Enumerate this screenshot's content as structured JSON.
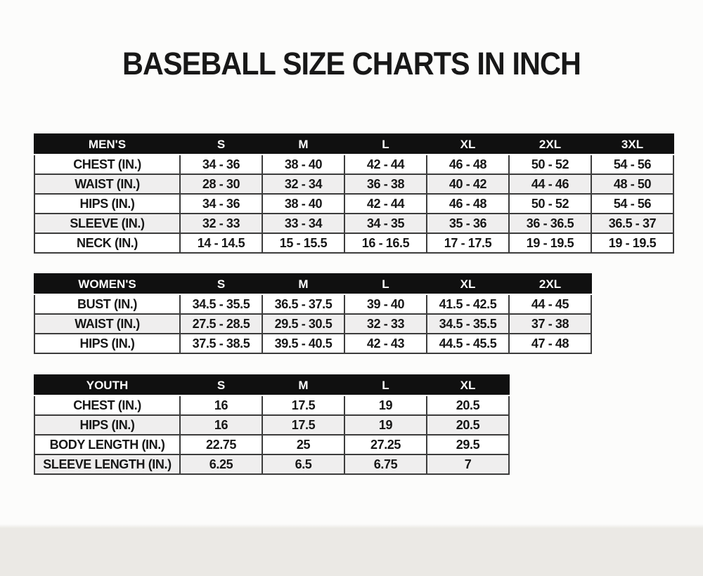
{
  "title": "BASEBALL SIZE CHARTS IN INCH",
  "chart_data": [
    {
      "type": "table",
      "name": "mens",
      "header": [
        "MEN'S",
        "S",
        "M",
        "L",
        "XL",
        "2XL",
        "3XL"
      ],
      "rows": [
        [
          "CHEST (IN.)",
          "34 - 36",
          "38 - 40",
          "42 - 44",
          "46 - 48",
          "50 - 52",
          "54 - 56"
        ],
        [
          "WAIST (IN.)",
          "28 - 30",
          "32 - 34",
          "36 - 38",
          "40 - 42",
          "44 - 46",
          "48 - 50"
        ],
        [
          "HIPS (IN.)",
          "34 - 36",
          "38 - 40",
          "42 - 44",
          "46 - 48",
          "50 - 52",
          "54 - 56"
        ],
        [
          "SLEEVE (IN.)",
          "32 - 33",
          "33 - 34",
          "34 - 35",
          "35 - 36",
          "36 - 36.5",
          "36.5 - 37"
        ],
        [
          "NECK (IN.)",
          "14 - 14.5",
          "15 - 15.5",
          "16 - 16.5",
          "17 - 17.5",
          "19 - 19.5",
          "19 - 19.5"
        ]
      ]
    },
    {
      "type": "table",
      "name": "womens",
      "header": [
        "WOMEN'S",
        "S",
        "M",
        "L",
        "XL",
        "2XL"
      ],
      "rows": [
        [
          "BUST (IN.)",
          "34.5 - 35.5",
          "36.5 - 37.5",
          "39 - 40",
          "41.5 - 42.5",
          "44 - 45"
        ],
        [
          "WAIST (IN.)",
          "27.5 - 28.5",
          "29.5 - 30.5",
          "32 - 33",
          "34.5 - 35.5",
          "37 - 38"
        ],
        [
          "HIPS (IN.)",
          "37.5 - 38.5",
          "39.5 - 40.5",
          "42 - 43",
          "44.5 - 45.5",
          "47 - 48"
        ]
      ]
    },
    {
      "type": "table",
      "name": "youth",
      "header": [
        "YOUTH",
        "S",
        "M",
        "L",
        "XL"
      ],
      "rows": [
        [
          "CHEST (IN.)",
          "16",
          "17.5",
          "19",
          "20.5"
        ],
        [
          "HIPS (IN.)",
          "16",
          "17.5",
          "19",
          "20.5"
        ],
        [
          "BODY LENGTH (IN.)",
          "22.75",
          "25",
          "27.25",
          "29.5"
        ],
        [
          "SLEEVE LENGTH (IN.)",
          "6.25",
          "6.5",
          "6.75",
          "7"
        ]
      ]
    }
  ],
  "colors": {
    "page_bg": "#fcfcfb",
    "header_bg": "#101010",
    "header_text": "#ffffff",
    "row_bg": "#ffffff",
    "row_alt_bg": "#efeeee",
    "border": "#3c3c3c",
    "text": "#161616"
  }
}
